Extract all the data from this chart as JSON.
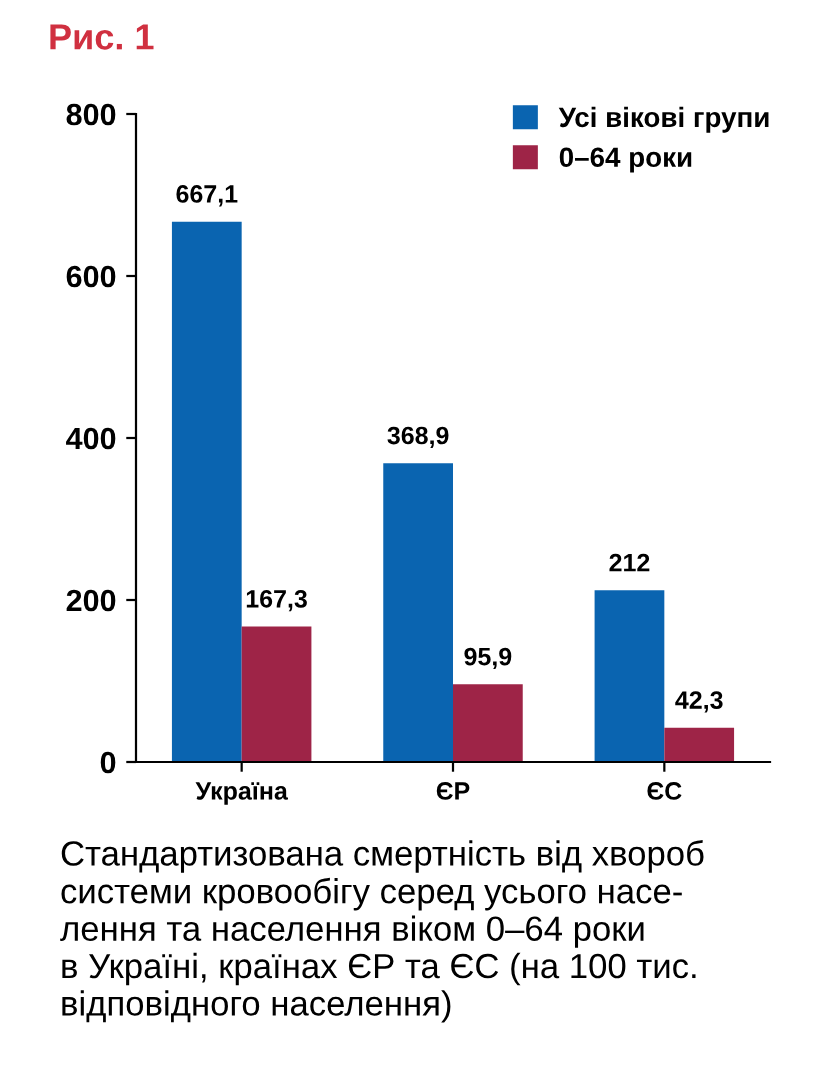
{
  "chart_data": {
    "type": "bar",
    "title": "Рис. 1",
    "categories": [
      "Україна",
      "ЄР",
      "ЄС"
    ],
    "series": [
      {
        "name": "Усі вікові групи",
        "color": "#0a64b0",
        "values": [
          667.1,
          368.9,
          212
        ],
        "value_labels": [
          "667,1",
          "368,9",
          "212"
        ]
      },
      {
        "name": "0–64 роки",
        "color": "#9e2447",
        "values": [
          167.3,
          95.9,
          42.3
        ],
        "value_labels": [
          "167,3",
          "95,9",
          "42,3"
        ]
      }
    ],
    "ylim": [
      0,
      800
    ],
    "yticks": [
      0,
      200,
      400,
      600,
      800
    ],
    "grid": false,
    "legend": "top right",
    "annotations": [
      "Стандартизована смертність від хвороб\nсистеми кровообігу серед усього насе-\nлення та населення віком 0–64 роки\nв Україні, країнах ЄР та ЄС (на 100 тис.\nвідповідного населення)"
    ]
  }
}
